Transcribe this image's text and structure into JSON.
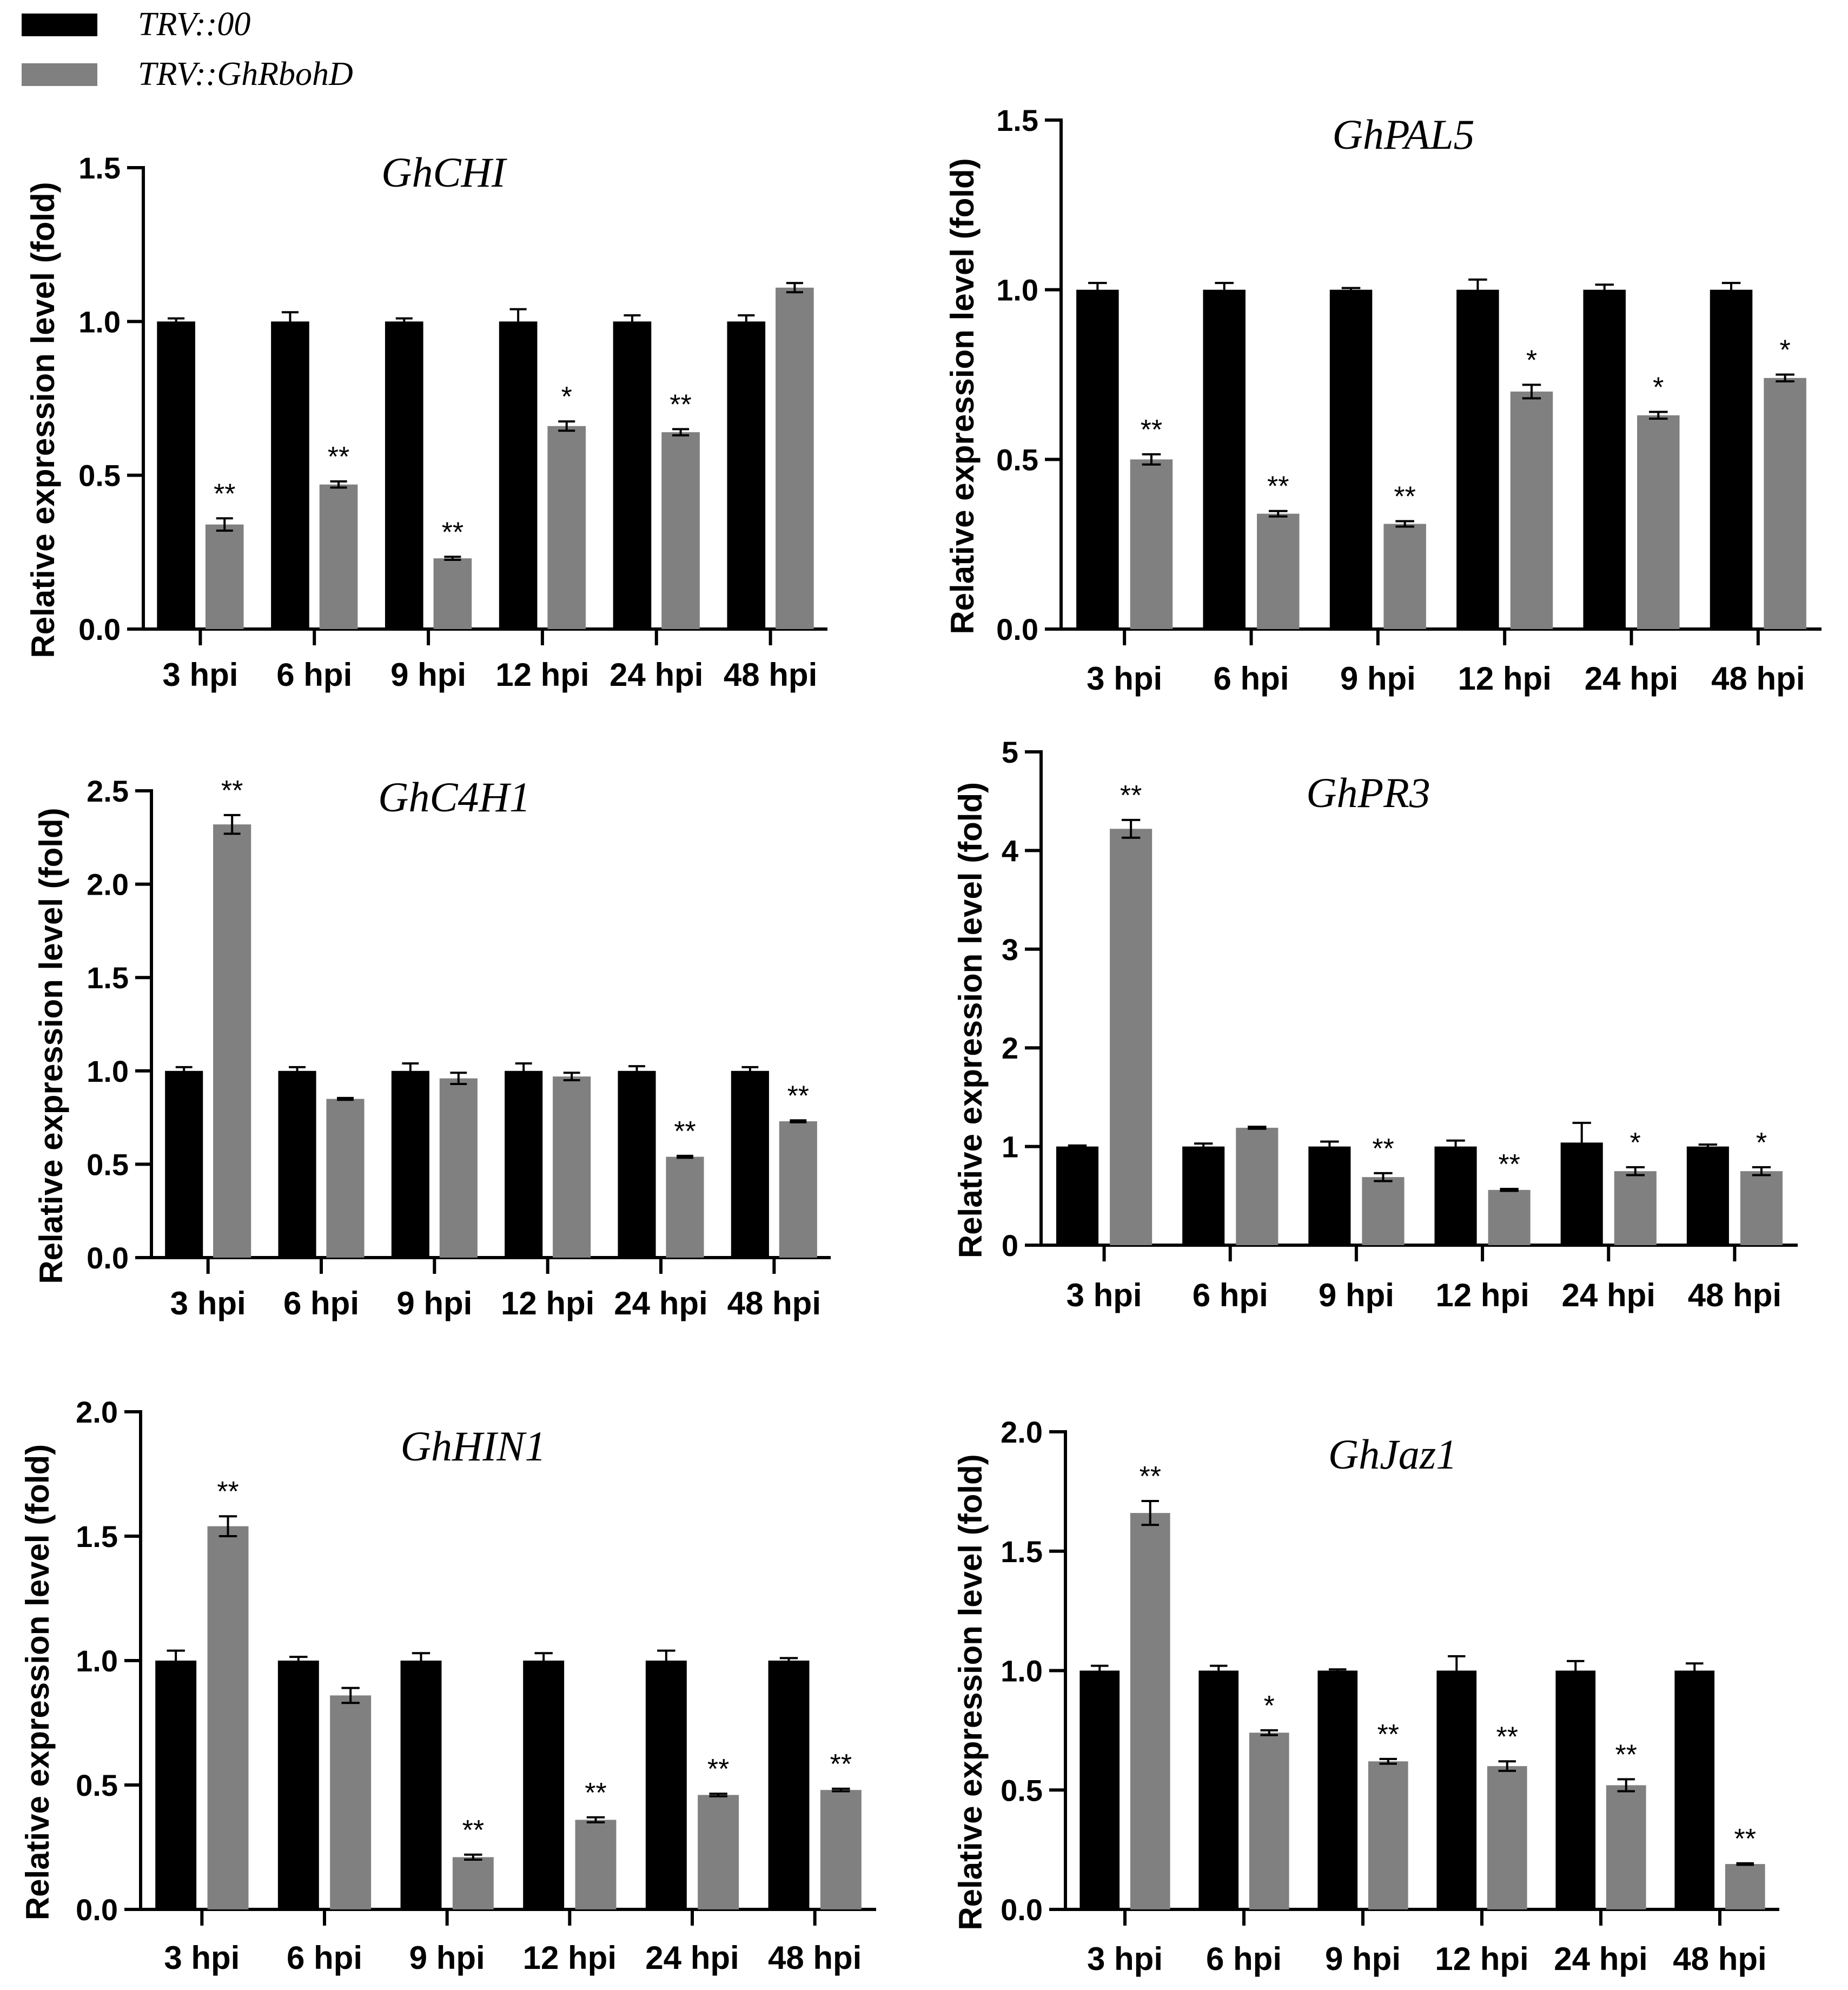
{
  "legend": {
    "items": [
      {
        "label": "TRV::00",
        "color": "#000000"
      },
      {
        "label": "TRV::GhRbohD",
        "color": "#808080"
      }
    ]
  },
  "chart_data": [
    {
      "type": "bar",
      "title": "GhCHI",
      "ylabel": "Relative expression level (fold)",
      "categories": [
        "3 hpi",
        "6 hpi",
        "9 hpi",
        "12 hpi",
        "24 hpi",
        "48 hpi"
      ],
      "ylim": [
        0,
        1.5
      ],
      "yticks": [
        "0.0",
        "0.5",
        "1.0",
        "1.5"
      ],
      "series": [
        {
          "name": "TRV::00",
          "values": [
            1.0,
            1.0,
            1.0,
            1.0,
            1.0,
            1.0
          ],
          "errors": [
            0.01,
            0.03,
            0.01,
            0.04,
            0.02,
            0.02
          ]
        },
        {
          "name": "TRV::GhRbohD",
          "values": [
            0.34,
            0.47,
            0.23,
            0.66,
            0.64,
            1.11
          ],
          "errors": [
            0.02,
            0.01,
            0.005,
            0.015,
            0.01,
            0.015
          ]
        }
      ],
      "significance": [
        "**",
        "**",
        "**",
        "*",
        "**",
        ""
      ]
    },
    {
      "type": "bar",
      "title": "GhPAL5",
      "ylabel": "Relative expression level (fold)",
      "categories": [
        "3 hpi",
        "6 hpi",
        "9 hpi",
        "12 hpi",
        "24 hpi",
        "48 hpi"
      ],
      "ylim": [
        0,
        1.5
      ],
      "yticks": [
        "0.0",
        "0.5",
        "1.0",
        "1.5"
      ],
      "series": [
        {
          "name": "TRV::00",
          "values": [
            1.0,
            1.0,
            1.0,
            1.0,
            1.0,
            1.0
          ],
          "errors": [
            0.02,
            0.02,
            0.005,
            0.03,
            0.015,
            0.02
          ]
        },
        {
          "name": "TRV::GhRbohD",
          "values": [
            0.5,
            0.34,
            0.31,
            0.7,
            0.63,
            0.74
          ],
          "errors": [
            0.015,
            0.008,
            0.008,
            0.02,
            0.01,
            0.01
          ]
        }
      ],
      "significance": [
        "**",
        "**",
        "**",
        "*",
        "*",
        "*"
      ]
    },
    {
      "type": "bar",
      "title": "GhC4H1",
      "ylabel": "Relative expression level (fold)",
      "categories": [
        "3 hpi",
        "6 hpi",
        "9 hpi",
        "12 hpi",
        "24 hpi",
        "48 hpi"
      ],
      "ylim": [
        0,
        2.5
      ],
      "yticks": [
        "0.0",
        "0.5",
        "1.0",
        "1.5",
        "2.0",
        "2.5"
      ],
      "series": [
        {
          "name": "TRV::00",
          "values": [
            1.0,
            1.0,
            1.0,
            1.0,
            1.0,
            1.0
          ],
          "errors": [
            0.02,
            0.02,
            0.04,
            0.04,
            0.025,
            0.02
          ]
        },
        {
          "name": "TRV::GhRbohD",
          "values": [
            2.32,
            0.85,
            0.96,
            0.97,
            0.54,
            0.73
          ],
          "errors": [
            0.05,
            0.005,
            0.03,
            0.02,
            0.005,
            0.005
          ]
        }
      ],
      "significance": [
        "**",
        "",
        "",
        "",
        "**",
        "**"
      ]
    },
    {
      "type": "bar",
      "title": "GhPR3",
      "ylabel": "Relative expression level (fold)",
      "categories": [
        "3 hpi",
        "6 hpi",
        "9 hpi",
        "12 hpi",
        "24 hpi",
        "48 hpi"
      ],
      "ylim": [
        0,
        5
      ],
      "yticks": [
        "0",
        "1",
        "2",
        "3",
        "4",
        "5"
      ],
      "series": [
        {
          "name": "TRV::00",
          "values": [
            1.0,
            1.0,
            1.0,
            1.0,
            1.04,
            1.0
          ],
          "errors": [
            0.01,
            0.03,
            0.05,
            0.06,
            0.2,
            0.02
          ]
        },
        {
          "name": "TRV::GhRbohD",
          "values": [
            4.22,
            1.19,
            0.69,
            0.56,
            0.75,
            0.75
          ],
          "errors": [
            0.09,
            0.01,
            0.04,
            0.01,
            0.04,
            0.04
          ]
        }
      ],
      "significance": [
        "**",
        "",
        "**",
        "**",
        "*",
        "*"
      ]
    },
    {
      "type": "bar",
      "title": "GhHIN1",
      "ylabel": "Relative expression level (fold)",
      "categories": [
        "3 hpi",
        "6 hpi",
        "9 hpi",
        "12 hpi",
        "24 hpi",
        "48 hpi"
      ],
      "ylim": [
        0,
        2.0
      ],
      "yticks": [
        "0.0",
        "0.5",
        "1.0",
        "1.5",
        "2.0"
      ],
      "series": [
        {
          "name": "TRV::00",
          "values": [
            1.0,
            1.0,
            1.0,
            1.0,
            1.0,
            1.0
          ],
          "errors": [
            0.04,
            0.015,
            0.03,
            0.03,
            0.04,
            0.01
          ]
        },
        {
          "name": "TRV::GhRbohD",
          "values": [
            1.54,
            0.86,
            0.21,
            0.36,
            0.46,
            0.48
          ],
          "errors": [
            0.04,
            0.03,
            0.01,
            0.01,
            0.005,
            0.005
          ]
        }
      ],
      "significance": [
        "**",
        "",
        "**",
        "**",
        "**",
        "**"
      ]
    },
    {
      "type": "bar",
      "title": "GhJaz1",
      "ylabel": "Relative expression level (fold)",
      "categories": [
        "3 hpi",
        "6 hpi",
        "9 hpi",
        "12 hpi",
        "24 hpi",
        "48 hpi"
      ],
      "ylim": [
        0,
        2.0
      ],
      "yticks": [
        "0.0",
        "0.5",
        "1.0",
        "1.5",
        "2.0"
      ],
      "series": [
        {
          "name": "TRV::00",
          "values": [
            1.0,
            1.0,
            1.0,
            1.0,
            1.0,
            1.0
          ],
          "errors": [
            0.02,
            0.02,
            0.005,
            0.06,
            0.04,
            0.03
          ]
        },
        {
          "name": "TRV::GhRbohD",
          "values": [
            1.66,
            0.74,
            0.62,
            0.6,
            0.52,
            0.19
          ],
          "errors": [
            0.05,
            0.01,
            0.01,
            0.02,
            0.025,
            0.003
          ]
        }
      ],
      "significance": [
        "**",
        "*",
        "**",
        "**",
        "**",
        "**"
      ]
    }
  ]
}
